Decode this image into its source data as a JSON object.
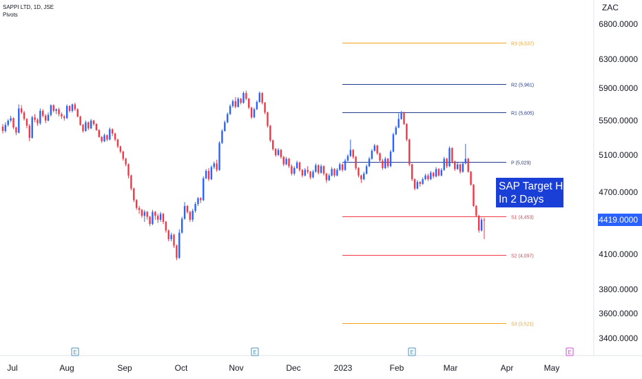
{
  "legend": {
    "symbol": "SAPPI LTD, 1D, JSE",
    "indicator": "Pivots"
  },
  "currency_unit": "ZAC",
  "annotation": {
    "line1": "SAP Target Hit",
    "line2": "In 2 Days"
  },
  "colors": {
    "up": "#2962ff",
    "down": "#f23645",
    "resistance3": "#f7a21b",
    "pivot": "#1e3a8a",
    "support": "#f23645",
    "last_price_bg": "#2962ff",
    "event_icon": "#4a90b8",
    "event_icon_future": "#d04bd6"
  },
  "chart_data": {
    "type": "candlestick",
    "title": "SAPPI LTD, 1D, JSE",
    "x_ticks": [
      "Jul",
      "Aug",
      "Sep",
      "Oct",
      "Nov",
      "Dec",
      "2023",
      "Feb",
      "Mar",
      "Apr",
      "May"
    ],
    "y_ticks": [
      "6800.0000",
      "6300.0000",
      "5900.0000",
      "5500.0000",
      "5100.0000",
      "4700.0000",
      "4419.0000",
      "4100.0000",
      "3800.0000",
      "3600.0000",
      "3400.0000"
    ],
    "last_price": 4419,
    "pivots": [
      {
        "label": "R3 (6,537)",
        "value": 6537,
        "role": "r3"
      },
      {
        "label": "R2 (5,961)",
        "value": 5961,
        "role": "r"
      },
      {
        "label": "R1 (5,605)",
        "value": 5605,
        "role": "r"
      },
      {
        "label": "P (5,029)",
        "value": 5029,
        "role": "p"
      },
      {
        "label": "S1 (4,453)",
        "value": 4453,
        "role": "s"
      },
      {
        "label": "S2 (4,097)",
        "value": 4097,
        "role": "s"
      },
      {
        "label": "S3 (3,521)",
        "value": 3521,
        "role": "r3"
      }
    ],
    "events": [
      {
        "label": "E",
        "month": "Aug",
        "future": false
      },
      {
        "label": "E",
        "month": "Nov",
        "future": false
      },
      {
        "label": "E",
        "month": "Feb",
        "future": false
      },
      {
        "label": "E",
        "month": "May",
        "future": true
      }
    ],
    "candles": [
      [
        5430,
        5460,
        5350,
        5380
      ],
      [
        5380,
        5480,
        5360,
        5450
      ],
      [
        5450,
        5520,
        5430,
        5500
      ],
      [
        5500,
        5560,
        5480,
        5530
      ],
      [
        5530,
        5540,
        5400,
        5420
      ],
      [
        5420,
        5430,
        5330,
        5360
      ],
      [
        5360,
        5700,
        5350,
        5650
      ],
      [
        5650,
        5690,
        5580,
        5600
      ],
      [
        5600,
        5620,
        5500,
        5520
      ],
      [
        5520,
        5530,
        5410,
        5440
      ],
      [
        5440,
        5460,
        5260,
        5300
      ],
      [
        5300,
        5560,
        5290,
        5540
      ],
      [
        5540,
        5580,
        5480,
        5510
      ],
      [
        5510,
        5530,
        5440,
        5470
      ],
      [
        5470,
        5650,
        5450,
        5620
      ],
      [
        5620,
        5640,
        5540,
        5560
      ],
      [
        5560,
        5580,
        5470,
        5500
      ],
      [
        5500,
        5600,
        5490,
        5570
      ],
      [
        5570,
        5700,
        5550,
        5690
      ],
      [
        5690,
        5700,
        5600,
        5620
      ],
      [
        5620,
        5650,
        5580,
        5640
      ],
      [
        5640,
        5660,
        5550,
        5580
      ],
      [
        5580,
        5600,
        5520,
        5550
      ],
      [
        5550,
        5570,
        5500,
        5530
      ],
      [
        5530,
        5700,
        5520,
        5680
      ],
      [
        5680,
        5690,
        5600,
        5620
      ],
      [
        5620,
        5710,
        5600,
        5700
      ],
      [
        5700,
        5720,
        5620,
        5640
      ],
      [
        5640,
        5650,
        5540,
        5550
      ],
      [
        5550,
        5560,
        5440,
        5450
      ],
      [
        5450,
        5460,
        5360,
        5380
      ],
      [
        5380,
        5500,
        5370,
        5480
      ],
      [
        5480,
        5490,
        5390,
        5410
      ],
      [
        5410,
        5520,
        5400,
        5500
      ],
      [
        5500,
        5510,
        5440,
        5460
      ],
      [
        5460,
        5470,
        5380,
        5390
      ],
      [
        5390,
        5400,
        5300,
        5310
      ],
      [
        5310,
        5320,
        5240,
        5260
      ],
      [
        5260,
        5350,
        5250,
        5330
      ],
      [
        5330,
        5340,
        5260,
        5280
      ],
      [
        5280,
        5420,
        5270,
        5400
      ],
      [
        5400,
        5410,
        5320,
        5350
      ],
      [
        5350,
        5360,
        5260,
        5280
      ],
      [
        5280,
        5290,
        5180,
        5200
      ],
      [
        5200,
        5210,
        5120,
        5140
      ],
      [
        5140,
        5150,
        5040,
        5060
      ],
      [
        5060,
        5070,
        4980,
        5000
      ],
      [
        5000,
        5010,
        4850,
        4880
      ],
      [
        4880,
        4890,
        4720,
        4740
      ],
      [
        4740,
        4750,
        4600,
        4620
      ],
      [
        4620,
        4630,
        4520,
        4540
      ],
      [
        4540,
        4560,
        4480,
        4520
      ],
      [
        4520,
        4530,
        4440,
        4460
      ],
      [
        4460,
        4520,
        4400,
        4500
      ],
      [
        4500,
        4510,
        4420,
        4450
      ],
      [
        4450,
        4460,
        4360,
        4380
      ],
      [
        4380,
        4520,
        4370,
        4500
      ],
      [
        4500,
        4510,
        4420,
        4460
      ],
      [
        4460,
        4480,
        4390,
        4420
      ],
      [
        4420,
        4500,
        4400,
        4480
      ],
      [
        4480,
        4490,
        4380,
        4400
      ],
      [
        4400,
        4410,
        4300,
        4320
      ],
      [
        4320,
        4330,
        4220,
        4240
      ],
      [
        4240,
        4300,
        4220,
        4280
      ],
      [
        4280,
        4290,
        4160,
        4180
      ],
      [
        4180,
        4190,
        4050,
        4070
      ],
      [
        4070,
        4330,
        4060,
        4300
      ],
      [
        4300,
        4450,
        4290,
        4430
      ],
      [
        4430,
        4600,
        4420,
        4560
      ],
      [
        4560,
        4570,
        4480,
        4500
      ],
      [
        4500,
        4510,
        4400,
        4420
      ],
      [
        4420,
        4530,
        4400,
        4510
      ],
      [
        4510,
        4600,
        4490,
        4580
      ],
      [
        4580,
        4650,
        4560,
        4640
      ],
      [
        4640,
        4650,
        4590,
        4620
      ],
      [
        4620,
        4870,
        4610,
        4850
      ],
      [
        4850,
        4950,
        4840,
        4930
      ],
      [
        4930,
        4960,
        4820,
        4840
      ],
      [
        4840,
        4990,
        4830,
        4970
      ],
      [
        4970,
        5030,
        4950,
        5010
      ],
      [
        5010,
        5050,
        4920,
        4940
      ],
      [
        4940,
        5260,
        4930,
        5240
      ],
      [
        5240,
        5400,
        5230,
        5380
      ],
      [
        5380,
        5500,
        5370,
        5480
      ],
      [
        5480,
        5600,
        5470,
        5580
      ],
      [
        5580,
        5700,
        5570,
        5680
      ],
      [
        5680,
        5760,
        5660,
        5740
      ],
      [
        5740,
        5790,
        5650,
        5670
      ],
      [
        5670,
        5790,
        5660,
        5770
      ],
      [
        5770,
        5780,
        5700,
        5720
      ],
      [
        5720,
        5860,
        5710,
        5840
      ],
      [
        5840,
        5870,
        5750,
        5770
      ],
      [
        5770,
        5780,
        5640,
        5660
      ],
      [
        5660,
        5670,
        5520,
        5540
      ],
      [
        5540,
        5660,
        5530,
        5640
      ],
      [
        5640,
        5750,
        5630,
        5730
      ],
      [
        5730,
        5860,
        5720,
        5840
      ],
      [
        5840,
        5850,
        5700,
        5720
      ],
      [
        5720,
        5730,
        5580,
        5600
      ],
      [
        5600,
        5610,
        5420,
        5440
      ],
      [
        5440,
        5450,
        5250,
        5270
      ],
      [
        5270,
        5280,
        5150,
        5170
      ],
      [
        5170,
        5180,
        5080,
        5100
      ],
      [
        5100,
        5180,
        5090,
        5160
      ],
      [
        5160,
        5170,
        5060,
        5080
      ],
      [
        5080,
        5090,
        4980,
        5000
      ],
      [
        5000,
        5080,
        4990,
        5060
      ],
      [
        5060,
        5070,
        4960,
        4980
      ],
      [
        4980,
        5000,
        4880,
        4900
      ],
      [
        4900,
        4980,
        4880,
        4960
      ],
      [
        4960,
        5040,
        4950,
        5020
      ],
      [
        5020,
        5030,
        4920,
        4940
      ],
      [
        4940,
        4950,
        4860,
        4880
      ],
      [
        4880,
        4960,
        4870,
        4940
      ],
      [
        4940,
        4980,
        4900,
        4920
      ],
      [
        4920,
        4930,
        4840,
        4860
      ],
      [
        4860,
        4940,
        4850,
        4920
      ],
      [
        4920,
        5010,
        4910,
        4990
      ],
      [
        4990,
        5000,
        4890,
        4910
      ],
      [
        4910,
        5000,
        4900,
        4980
      ],
      [
        4980,
        4990,
        4880,
        4900
      ],
      [
        4900,
        4910,
        4800,
        4830
      ],
      [
        4830,
        4900,
        4820,
        4880
      ],
      [
        4880,
        4970,
        4870,
        4950
      ],
      [
        4950,
        4960,
        4860,
        4880
      ],
      [
        4880,
        4960,
        4870,
        4940
      ],
      [
        4940,
        5020,
        4930,
        5000
      ],
      [
        5000,
        5010,
        4920,
        4940
      ],
      [
        4940,
        5060,
        4930,
        5040
      ],
      [
        5040,
        5110,
        5030,
        5090
      ],
      [
        5090,
        5280,
        5080,
        5160
      ],
      [
        5160,
        5170,
        5060,
        5080
      ],
      [
        5080,
        5090,
        4940,
        4960
      ],
      [
        4960,
        4970,
        4860,
        4880
      ],
      [
        4880,
        4890,
        4800,
        4840
      ],
      [
        4840,
        4920,
        4830,
        4900
      ],
      [
        4900,
        5000,
        4890,
        4980
      ],
      [
        4980,
        5080,
        4970,
        5060
      ],
      [
        5060,
        5170,
        5050,
        5150
      ],
      [
        5150,
        5230,
        5140,
        5210
      ],
      [
        5210,
        5220,
        5100,
        5120
      ],
      [
        5120,
        5130,
        5020,
        5040
      ],
      [
        5040,
        5060,
        4940,
        4960
      ],
      [
        4960,
        5080,
        4950,
        5060
      ],
      [
        5060,
        5070,
        4960,
        4980
      ],
      [
        4980,
        5160,
        4970,
        5140
      ],
      [
        5140,
        5360,
        5130,
        5340
      ],
      [
        5340,
        5440,
        5330,
        5420
      ],
      [
        5420,
        5590,
        5410,
        5520
      ],
      [
        5520,
        5620,
        5510,
        5600
      ],
      [
        5600,
        5610,
        5450,
        5460
      ],
      [
        5460,
        5470,
        5260,
        5280
      ],
      [
        5280,
        5290,
        4980,
        5000
      ],
      [
        5000,
        5010,
        4820,
        4840
      ],
      [
        4840,
        4850,
        4720,
        4740
      ],
      [
        4740,
        4830,
        4730,
        4810
      ],
      [
        4810,
        4820,
        4760,
        4790
      ],
      [
        4790,
        4860,
        4780,
        4840
      ],
      [
        4840,
        4900,
        4830,
        4880
      ],
      [
        4880,
        4900,
        4820,
        4840
      ],
      [
        4840,
        4930,
        4830,
        4910
      ],
      [
        4910,
        4920,
        4850,
        4870
      ],
      [
        4870,
        4970,
        4860,
        4950
      ],
      [
        4950,
        4960,
        4870,
        4880
      ],
      [
        4880,
        4960,
        4870,
        4940
      ],
      [
        4940,
        5080,
        4930,
        5060
      ],
      [
        5060,
        5070,
        4960,
        4980
      ],
      [
        4980,
        5200,
        4970,
        5180
      ],
      [
        5180,
        5190,
        5010,
        5030
      ],
      [
        5030,
        5040,
        4930,
        4950
      ],
      [
        4950,
        5020,
        4940,
        5000
      ],
      [
        5000,
        5010,
        4900,
        4920
      ],
      [
        4920,
        5030,
        4910,
        5010
      ],
      [
        5010,
        5230,
        5000,
        5060
      ],
      [
        5060,
        5070,
        4910,
        4920
      ],
      [
        4920,
        4930,
        4770,
        4780
      ],
      [
        4780,
        4790,
        4550,
        4560
      ],
      [
        4560,
        4570,
        4450,
        4460
      ],
      [
        4460,
        4470,
        4300,
        4320
      ],
      [
        4320,
        4440,
        4310,
        4420
      ],
      [
        4420,
        4440,
        4240,
        4419
      ]
    ]
  }
}
